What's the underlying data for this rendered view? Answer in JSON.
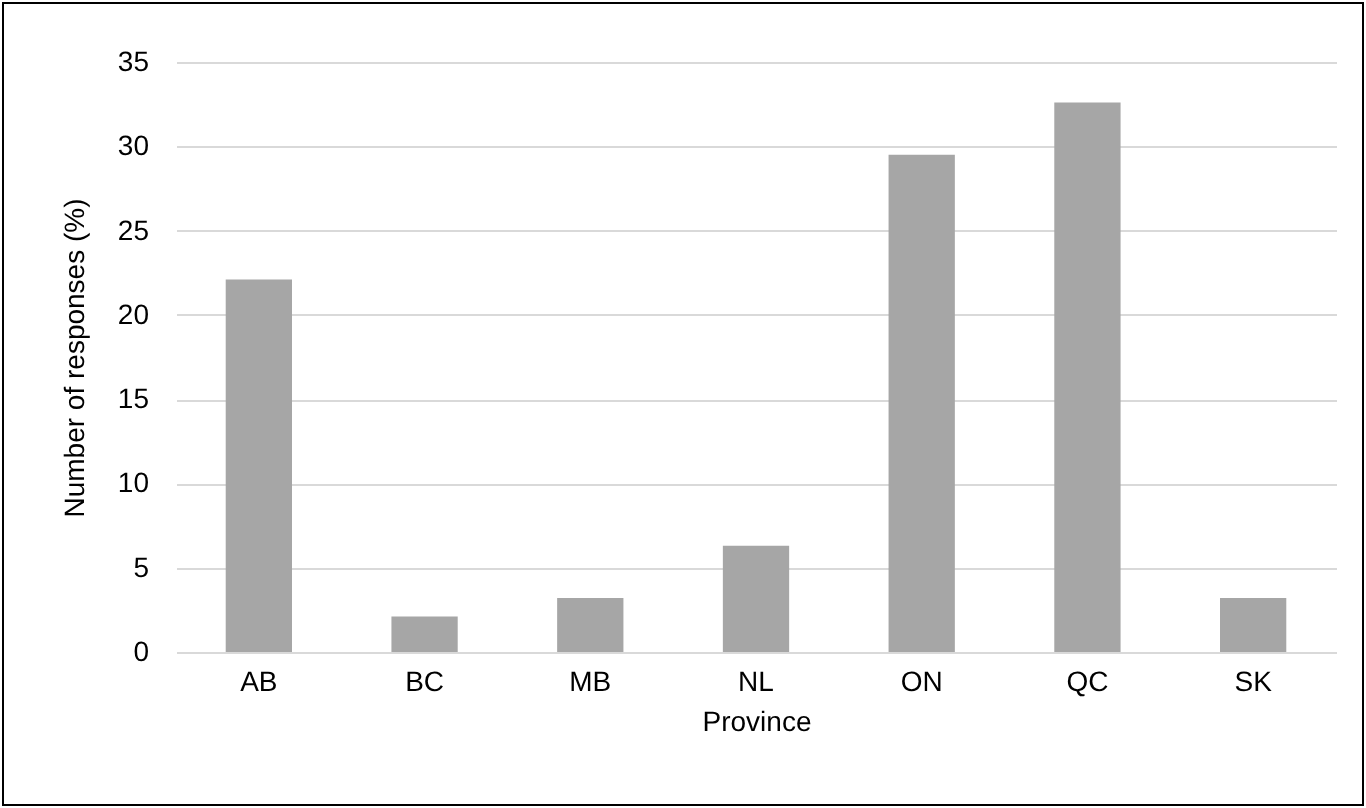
{
  "chart_data": {
    "type": "bar",
    "xlabel": "Province",
    "ylabel": "Number of responses (%)",
    "categories": [
      "AB",
      "BC",
      "MB",
      "NL",
      "ON",
      "QC",
      "SK"
    ],
    "values": [
      22.1,
      2.1,
      3.2,
      6.3,
      29.5,
      32.6,
      3.2
    ],
    "color": "#a6a6a6",
    "ylim": [
      0,
      35
    ],
    "yticks": [
      0,
      5,
      10,
      15,
      20,
      25,
      30,
      35
    ],
    "grid": "y"
  }
}
